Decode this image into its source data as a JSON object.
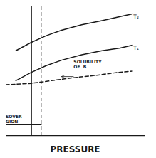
{
  "chart_data": {
    "type": "line",
    "x_label": "PRESSURE",
    "color": "#1a1a1a",
    "xlim": [
      -0.25,
      1.12
    ],
    "ylim": [
      0.1,
      1.05
    ],
    "xticks": [],
    "yticks": [],
    "tick_labels": false,
    "grid": false,
    "series": [
      {
        "x": [
          -0.15,
          0.0,
          0.15,
          0.3,
          0.5,
          0.7,
          0.88,
          1.0
        ],
        "values": [
          0.72,
          0.78,
          0.83,
          0.87,
          0.91,
          0.94,
          0.97,
          0.99
        ],
        "line_style": "solid"
      },
      {
        "x": [
          -0.15,
          0.0,
          0.15,
          0.3,
          0.5,
          0.7,
          0.88,
          1.0
        ],
        "values": [
          0.5,
          0.56,
          0.61,
          0.65,
          0.69,
          0.72,
          0.74,
          0.76
        ],
        "line_style": "solid"
      },
      {
        "x": [
          -0.25,
          0.0,
          0.2,
          0.4,
          0.65,
          0.85,
          1.0
        ],
        "values": [
          0.47,
          0.48,
          0.5,
          0.52,
          0.54,
          0.56,
          0.57
        ],
        "line_style": "dashed"
      },
      {
        "x": [
          -0.25,
          0.1
        ],
        "values": [
          0.18,
          0.18
        ],
        "line_style": "solid"
      }
    ],
    "vlines": [
      {
        "x": 0.1,
        "line_style": "dashed"
      }
    ],
    "arrows": [
      {
        "x_start": 0.42,
        "x_end": 0.3,
        "y": 0.53
      }
    ],
    "annotations": [
      {
        "text": "T₂",
        "x": 1.01,
        "y": 0.97
      },
      {
        "text": "T₁",
        "x": 1.01,
        "y": 0.74
      },
      {
        "text": "SOLUBILITY\nOF  B",
        "x": 0.42,
        "y": 0.62
      },
      {
        "text": "SOVER\nGION",
        "x": -0.25,
        "y": 0.22
      }
    ]
  }
}
